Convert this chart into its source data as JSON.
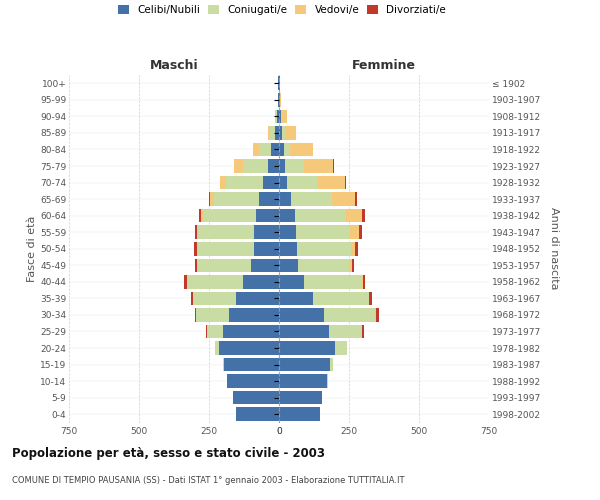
{
  "age_groups": [
    "0-4",
    "5-9",
    "10-14",
    "15-19",
    "20-24",
    "25-29",
    "30-34",
    "35-39",
    "40-44",
    "45-49",
    "50-54",
    "55-59",
    "60-64",
    "65-69",
    "70-74",
    "75-79",
    "80-84",
    "85-89",
    "90-94",
    "95-99",
    "100+"
  ],
  "birth_years": [
    "1998-2002",
    "1993-1997",
    "1988-1992",
    "1983-1987",
    "1978-1982",
    "1973-1977",
    "1968-1972",
    "1963-1967",
    "1958-1962",
    "1953-1957",
    "1948-1952",
    "1943-1947",
    "1938-1942",
    "1933-1937",
    "1928-1932",
    "1923-1927",
    "1918-1922",
    "1913-1917",
    "1908-1912",
    "1903-1907",
    "≤ 1902"
  ],
  "maschi_celibi": [
    155,
    165,
    185,
    195,
    215,
    200,
    180,
    155,
    130,
    100,
    90,
    88,
    82,
    72,
    58,
    38,
    28,
    16,
    8,
    3,
    2
  ],
  "maschi_coniugati": [
    0,
    0,
    2,
    5,
    12,
    58,
    115,
    152,
    198,
    190,
    200,
    200,
    188,
    160,
    130,
    90,
    42,
    18,
    6,
    2,
    0
  ],
  "maschi_vedovi": [
    0,
    0,
    0,
    0,
    0,
    0,
    0,
    0,
    2,
    2,
    4,
    5,
    10,
    16,
    22,
    32,
    22,
    6,
    2,
    0,
    0
  ],
  "maschi_divorziati": [
    0,
    0,
    0,
    0,
    0,
    3,
    6,
    8,
    10,
    8,
    8,
    8,
    6,
    3,
    2,
    0,
    0,
    0,
    0,
    0,
    0
  ],
  "femmine_nubili": [
    148,
    152,
    172,
    182,
    200,
    180,
    162,
    122,
    88,
    68,
    65,
    62,
    58,
    42,
    30,
    22,
    18,
    12,
    8,
    3,
    2
  ],
  "femmine_coniugate": [
    0,
    0,
    2,
    10,
    42,
    118,
    182,
    198,
    208,
    182,
    192,
    192,
    182,
    148,
    108,
    68,
    22,
    8,
    2,
    0,
    0
  ],
  "femmine_vedove": [
    0,
    0,
    0,
    0,
    0,
    0,
    2,
    3,
    5,
    10,
    16,
    32,
    58,
    82,
    98,
    102,
    82,
    42,
    18,
    5,
    0
  ],
  "femmine_divorziate": [
    0,
    0,
    0,
    0,
    2,
    5,
    12,
    8,
    5,
    8,
    10,
    12,
    10,
    5,
    3,
    3,
    0,
    0,
    0,
    0,
    0
  ],
  "colors_celibi": "#4472a8",
  "colors_coniugati": "#c8dca4",
  "colors_vedovi": "#f5c87a",
  "colors_divorziati": "#c0392b",
  "xlim": 750,
  "title": "Popolazione per età, sesso e stato civile - 2003",
  "subtitle": "COMUNE DI TEMPIO PAUSANIA (SS) - Dati ISTAT 1° gennaio 2003 - Elaborazione TUTTITALIA.IT",
  "ylabel_left": "Fasce di età",
  "ylabel_right": "Anni di nascita",
  "header_left": "Maschi",
  "header_right": "Femmine",
  "bg_color": "#ffffff",
  "grid_color": "#cccccc"
}
